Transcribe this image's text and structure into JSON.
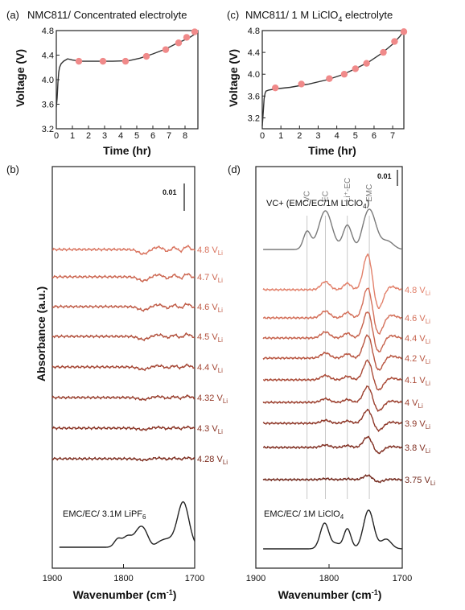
{
  "chart_data": [
    {
      "panel": "(a)",
      "type": "line",
      "title": "NMC811/ Concentrated electrolyte",
      "xlabel": "Time (hr)",
      "ylabel": "Voltage (V)",
      "xlim": [
        0,
        8.8
      ],
      "ylim": [
        3.2,
        4.8
      ],
      "xticks": [
        "0",
        "1",
        "2",
        "3",
        "4",
        "5",
        "6",
        "7",
        "8"
      ],
      "yticks": [
        "3.2",
        "3.6",
        "4.0",
        "4.4",
        "4.8"
      ],
      "curve": {
        "x": [
          0,
          0.05,
          0.1,
          0.15,
          0.2,
          0.3,
          0.45,
          0.7,
          1.0,
          1.5,
          2.5,
          3.5,
          4.5,
          5.2,
          6.0,
          6.8,
          7.4,
          7.9,
          8.3,
          8.6,
          8.75
        ],
        "y": [
          3.55,
          3.7,
          3.95,
          4.12,
          4.2,
          4.26,
          4.3,
          4.34,
          4.32,
          4.3,
          4.3,
          4.3,
          4.31,
          4.35,
          4.42,
          4.5,
          4.58,
          4.64,
          4.69,
          4.74,
          4.79
        ]
      },
      "markers": {
        "x": [
          1.4,
          2.9,
          4.3,
          5.6,
          6.8,
          7.6,
          8.1,
          8.6
        ],
        "y": [
          4.3,
          4.3,
          4.3,
          4.38,
          4.49,
          4.6,
          4.69,
          4.78
        ]
      },
      "line_color": "#333333",
      "marker_color": "#f08a8a"
    },
    {
      "panel": "(c)",
      "type": "line",
      "title": "NMC811/ 1 M LiClO₄ electrolyte",
      "xlabel": "Time (hr)",
      "ylabel": "Voltage (V)",
      "xlim": [
        0,
        7.6
      ],
      "ylim": [
        3.0,
        4.8
      ],
      "xticks": [
        "0",
        "1",
        "2",
        "3",
        "4",
        "5",
        "6",
        "7"
      ],
      "yticks": [
        "3.2",
        "3.6",
        "4.0",
        "4.4",
        "4.8"
      ],
      "curve": {
        "x": [
          0,
          0.05,
          0.1,
          0.15,
          0.2,
          0.35,
          0.7,
          1.5,
          2.5,
          3.5,
          4.3,
          5.0,
          5.7,
          6.4,
          7.0,
          7.4,
          7.6
        ],
        "y": [
          3.05,
          3.3,
          3.55,
          3.65,
          3.69,
          3.71,
          3.73,
          3.76,
          3.82,
          3.9,
          3.99,
          4.1,
          4.22,
          4.38,
          4.55,
          4.7,
          4.8
        ]
      },
      "markers": {
        "x": [
          0.7,
          2.1,
          3.6,
          4.4,
          5.0,
          5.6,
          6.5,
          7.1,
          7.6
        ],
        "y": [
          3.75,
          3.82,
          3.92,
          4.0,
          4.1,
          4.2,
          4.4,
          4.6,
          4.78
        ]
      },
      "line_color": "#333333",
      "marker_color": "#f08a8a"
    },
    {
      "panel": "(b)",
      "type": "line",
      "xlabel": "Wavenumber (cm⁻¹)",
      "ylabel": "Absorbance (a.u.)",
      "xlim": [
        1900,
        1700
      ],
      "xticks": [
        "1900",
        "1800",
        "1700"
      ],
      "scale_bar": "0.01",
      "series": [
        {
          "name": "4.8 V_Li",
          "color": "#d9735e"
        },
        {
          "name": "4.7 V_Li",
          "color": "#cc6650"
        },
        {
          "name": "4.6 V_Li",
          "color": "#bf5a45"
        },
        {
          "name": "4.5 V_Li",
          "color": "#b14e3a"
        },
        {
          "name": "4.4 V_Li",
          "color": "#a44432"
        },
        {
          "name": "4.32 V_Li",
          "color": "#963b2a"
        },
        {
          "name": "4.3 V_Li",
          "color": "#893324"
        },
        {
          "name": "4.28 V_Li",
          "color": "#7c2c1e"
        },
        {
          "name": "EMC/EC/ 3.1M LiPF₆",
          "color": "#222222"
        }
      ]
    },
    {
      "panel": "(d)",
      "type": "line",
      "xlabel": "Wavenumber (cm⁻¹)",
      "ylabel": "",
      "xlim": [
        1900,
        1700
      ],
      "xticks": [
        "1900",
        "1800",
        "1700"
      ],
      "scale_bar": "0.01",
      "band_labels": [
        "VC",
        "EC",
        "Li⁺-EC",
        "EMC"
      ],
      "band_positions": [
        1830,
        1805,
        1775,
        1745
      ],
      "series": [
        {
          "name": "VC+ (EMC/EC/1M LiClO₄)",
          "color": "#7a7a7a"
        },
        {
          "name": "4.8 V_Li",
          "color": "#e2806a"
        },
        {
          "name": "4.6 V_Li",
          "color": "#d4705a"
        },
        {
          "name": "4.4 V_Li",
          "color": "#c6624c"
        },
        {
          "name": "4.2 V_Li",
          "color": "#b85540"
        },
        {
          "name": "4.1 V_Li",
          "color": "#aa4a37"
        },
        {
          "name": "4 V_Li",
          "color": "#9c402f"
        },
        {
          "name": "3.9 V_Li",
          "color": "#8e3728"
        },
        {
          "name": "3.8 V_Li",
          "color": "#802f22"
        },
        {
          "name": "3.75 V_Li",
          "color": "#72281c"
        },
        {
          "name": "EMC/EC/ 1M LiClO₄",
          "color": "#222222"
        }
      ]
    }
  ],
  "labels": {
    "a_panel": "(a)",
    "c_panel": "(c)",
    "b_panel": "(b)",
    "d_panel": "(d)",
    "a_title": "NMC811/ Concentrated electrolyte",
    "c_title_pre": "NMC811/ 1 M LiClO",
    "c_title_sub": "4",
    "c_title_post": " electrolyte",
    "time_label": "Time (hr)",
    "voltage_label": "Voltage (V)",
    "absorbance_label": "Absorbance (a.u.)",
    "wavenumber_pre": "Wavenumber (cm",
    "wavenumber_sup": "-1",
    "wavenumber_post": ")",
    "scale_bar": "0.01",
    "b_ref_pre": "EMC/EC/ 3.1M LiPF",
    "b_ref_sub": "6",
    "d_vc_pre": "VC+ (EMC/EC/1M LiClO",
    "d_vc_sub": "4",
    "d_vc_post": ")",
    "d_ref_pre": "EMC/EC/ 1M LiClO",
    "d_ref_sub": "4"
  }
}
